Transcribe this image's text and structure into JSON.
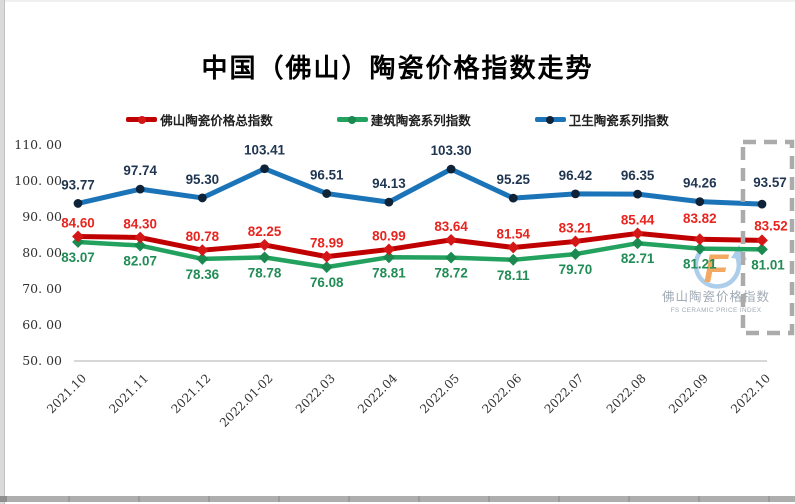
{
  "title": "中国（佛山）陶瓷价格指数走势",
  "watermark": {
    "letter": "F",
    "line1": "佛山陶瓷价格指数",
    "line2": "FS CERAMIC PRICE INDEX"
  },
  "chart_data": {
    "type": "line",
    "title": "中国（佛山）陶瓷价格指数走势",
    "categories": [
      "2021.10",
      "2021.11",
      "2021.12",
      "2022.01-02",
      "2022.03",
      "2022.04",
      "2022.05",
      "2022.06",
      "2022.07",
      "2022.08",
      "2022.09",
      "2022.10"
    ],
    "series": [
      {
        "name": "佛山陶瓷价格总指数",
        "color": "#C00000",
        "marker_color": "#D41616",
        "label_color": "#E8241E",
        "label_position": "above",
        "values": [
          84.6,
          84.3,
          80.78,
          82.25,
          78.99,
          80.99,
          83.64,
          81.54,
          83.21,
          85.44,
          83.82,
          83.52
        ]
      },
      {
        "name": "建筑陶瓷系列指数",
        "color": "#23A15E",
        "marker_color": "#1B8A50",
        "label_color": "#218C55",
        "label_position": "below",
        "values": [
          83.07,
          82.07,
          78.36,
          78.78,
          76.08,
          78.81,
          78.72,
          78.11,
          79.7,
          82.71,
          81.21,
          81.01
        ]
      },
      {
        "name": "卫生陶瓷系列指数",
        "color": "#1C74B8",
        "marker_color": "#0F2338",
        "label_color": "#1F3550",
        "label_position": "above",
        "values": [
          93.77,
          97.74,
          95.3,
          103.41,
          96.51,
          94.13,
          103.3,
          95.25,
          96.42,
          96.35,
          94.26,
          93.57
        ]
      }
    ],
    "y_axis": {
      "min": 50,
      "max": 110,
      "ticks": [
        110,
        100,
        90,
        80,
        70,
        60,
        50
      ],
      "tick_labels": [
        "110. 00",
        "100. 00",
        "90. 00",
        "80. 00",
        "70. 00",
        "60. 00",
        "50. 00"
      ]
    },
    "legend_position": "top",
    "gridlines": false,
    "highlight_box": {
      "category": "2022.10"
    }
  }
}
